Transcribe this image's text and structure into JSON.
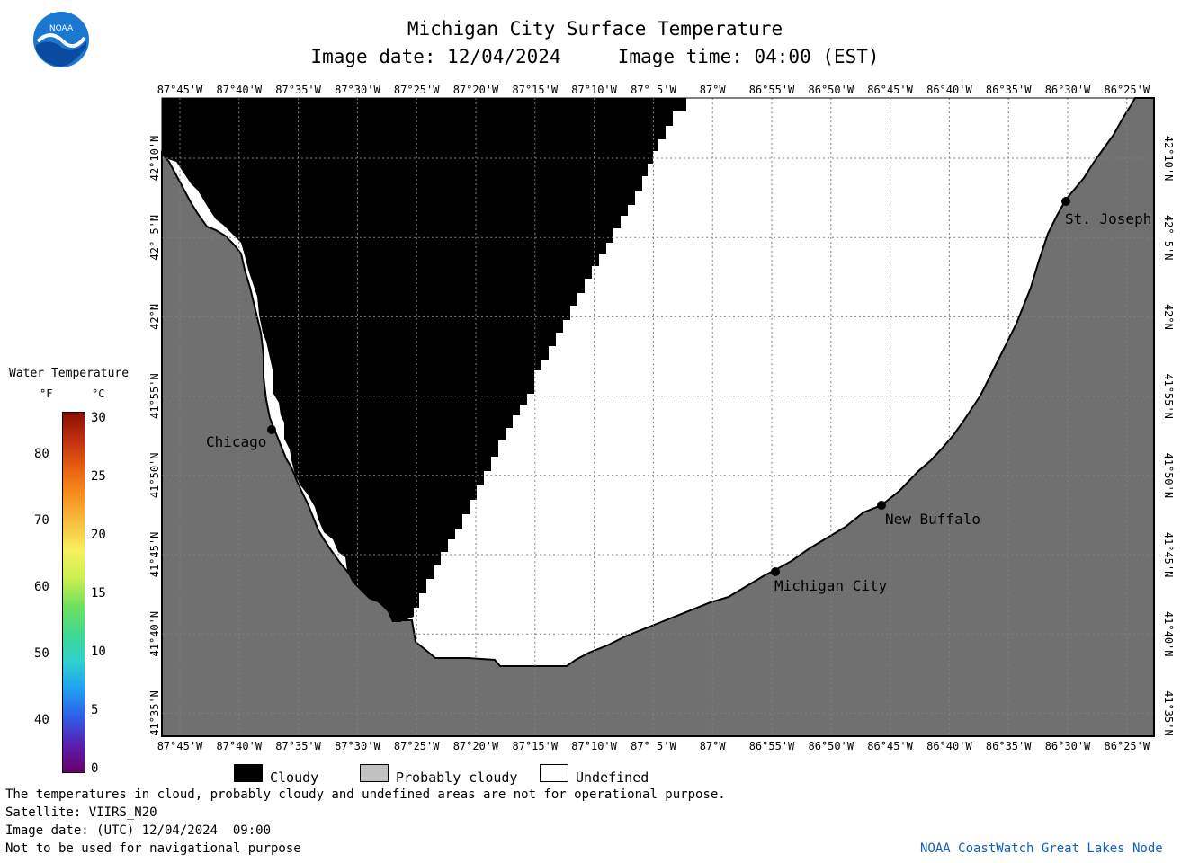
{
  "title": "Michigan City Surface Temperature",
  "image_date_line": "Image date: 12/04/2024     Image time: 04:00 (EST)",
  "longitude_ticks": [
    "87°45'W",
    "87°40'W",
    "87°35'W",
    "87°30'W",
    "87°25'W",
    "87°20'W",
    "87°15'W",
    "87°10'W",
    "87° 5'W",
    "87°W",
    "86°55'W",
    "86°50'W",
    "86°45'W",
    "86°40'W",
    "86°35'W",
    "86°30'W",
    "86°25'W"
  ],
  "latitude_ticks": [
    "42°10'N",
    "42° 5'N",
    "42°N",
    "41°55'N",
    "41°50'N",
    "41°45'N",
    "41°40'N",
    "41°35'N"
  ],
  "cities": [
    {
      "name": "Chicago",
      "marker": "dot"
    },
    {
      "name": "St. Joseph",
      "marker": "dot"
    },
    {
      "name": "New Buffalo",
      "marker": "dot"
    },
    {
      "name": "Michigan City",
      "marker": "dot"
    }
  ],
  "legend": {
    "title": "Water Temperature",
    "unit_f": "°F",
    "unit_c": "°C",
    "f_ticks": [
      "80",
      "70",
      "60",
      "50",
      "40"
    ],
    "c_ticks": [
      "30",
      "25",
      "20",
      "15",
      "10",
      "5",
      "0"
    ],
    "colors": [
      "#6a006a",
      "#5a1fb0",
      "#2f5fe8",
      "#1fa0f0",
      "#30d0d0",
      "#40d890",
      "#70e060",
      "#c8f050",
      "#f8f060",
      "#f8c040",
      "#f89020",
      "#e86010",
      "#c03010",
      "#8a1000"
    ]
  },
  "key": [
    {
      "label": "Cloudy",
      "color": "#000000"
    },
    {
      "label": "Probably cloudy",
      "color": "#c0c0c0"
    },
    {
      "label": "Undefined",
      "color": "#ffffff"
    }
  ],
  "footer": {
    "line1": "The temperatures in cloud, probably cloudy and undefined areas are not for operational purpose.",
    "line2": "Satellite: VIIRS_N20",
    "line3": "Image date: (UTC) 12/04/2024  09:00",
    "line4": "Not to be used for navigational purpose",
    "credit": "NOAA CoastWatch Great Lakes Node"
  },
  "colors": {
    "land": "#707070",
    "cloud": "#000000",
    "grid": "#808080",
    "credit": "#1060c0",
    "noaa_blue": "#1a78d2"
  }
}
